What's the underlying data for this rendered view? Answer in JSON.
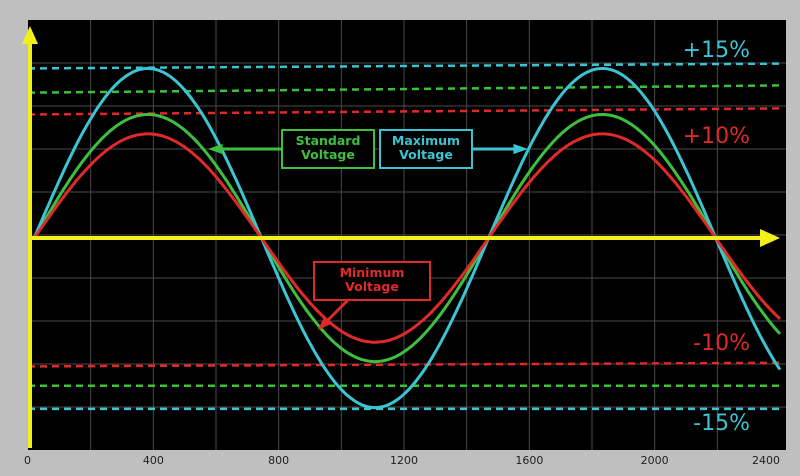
{
  "chart_data": {
    "type": "line",
    "title": "",
    "xlabel": "",
    "ylabel": "",
    "xlim": [
      0,
      2400
    ],
    "ylim": [
      -17.5,
      18
    ],
    "x_ticks": [
      "0",
      "400",
      "800",
      "1200",
      "1600",
      "2000",
      "2400"
    ],
    "grid": true,
    "background": "#000000",
    "series": [
      {
        "name": "Standard Voltage",
        "color": "#3fbf3f",
        "amplitude": 10.2,
        "period": 1450,
        "phase_start": 20
      },
      {
        "name": "Maximum Voltage",
        "color": "#3cc4d2",
        "amplitude": 14.0,
        "period": 1450,
        "phase_start": 20
      },
      {
        "name": "Minimum Voltage",
        "color": "#e02a2a",
        "amplitude": 8.6,
        "period": 1450,
        "phase_start": 20
      }
    ],
    "reference_lines": [
      {
        "color": "#3cc4d2",
        "y_start": 14.0,
        "y_end": 14.4
      },
      {
        "color": "#3fbf3f",
        "y_start": 12.0,
        "y_end": 12.6
      },
      {
        "color": "#e02a2a",
        "y_start": 10.2,
        "y_end": 10.7
      },
      {
        "color": "#e02a2a",
        "y_start": -10.6,
        "y_end": -10.3
      },
      {
        "color": "#3fbf3f",
        "y_start": -12.2,
        "y_end": -12.2
      },
      {
        "color": "#3cc4d2",
        "y_start": -14.1,
        "y_end": -14.1
      }
    ],
    "annotations": [
      {
        "text": "+15%",
        "color": "#3cc4d2"
      },
      {
        "text": "+10%",
        "color": "#e02a2a"
      },
      {
        "text": "-10%",
        "color": "#e02a2a"
      },
      {
        "text": "-15%",
        "color": "#3cc4d2"
      }
    ],
    "callouts": [
      {
        "lines": [
          "Standard",
          "Voltage"
        ],
        "color": "#3fbf3f"
      },
      {
        "lines": [
          "Maximum",
          "Voltage"
        ],
        "color": "#3cc4d2"
      },
      {
        "lines": [
          "Minimum",
          "Voltage"
        ],
        "color": "#e02a2a"
      }
    ],
    "axis_color": "#f2ef1a"
  }
}
